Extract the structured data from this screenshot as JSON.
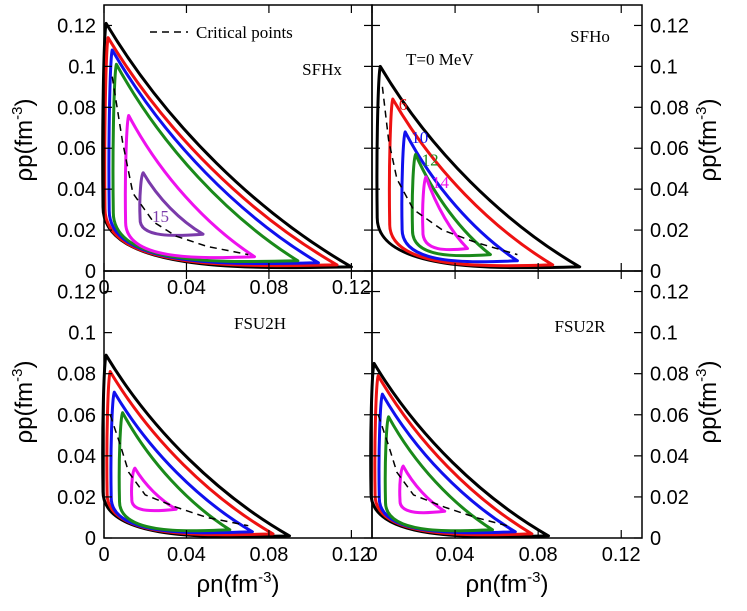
{
  "chart_data": {
    "type": "line",
    "xlabel": "ρn(fm-3)",
    "ylabel": "ρp(fm-3)",
    "xlim": [
      0,
      0.13
    ],
    "ylim": [
      0,
      0.13
    ],
    "xticks": [
      "0",
      "0.04",
      "0.08",
      "0.12"
    ],
    "yticks": [
      "0",
      "0.02",
      "0.04",
      "0.06",
      "0.08",
      "0.1",
      "0.12"
    ],
    "legend": {
      "label": "Critical points",
      "placement": "top"
    },
    "temperature_note": "T=0 MeV",
    "colors": {
      "T0": "#000000",
      "T6": "#ee1111",
      "T10": "#1010ee",
      "T12": "#1a8a1a",
      "T14": "#ee11ee",
      "T15": "#7a3aaa"
    },
    "panels": [
      {
        "name": "SFHx",
        "critical_points": [
          [
            0.004,
            0.095
          ],
          [
            0.009,
            0.063
          ],
          [
            0.014,
            0.038
          ],
          [
            0.024,
            0.024
          ],
          [
            0.035,
            0.017
          ],
          [
            0.05,
            0.012
          ],
          [
            0.07,
            0.008
          ]
        ],
        "curves": [
          {
            "temperature": "0",
            "label": "",
            "color_key": "T0",
            "outer": [
              [
                0.001,
                0.121
              ],
              [
                0.12,
                0.002
              ]
            ]
          },
          {
            "temperature": "6",
            "label": "",
            "color_key": "T6",
            "outer": [
              [
                0.002,
                0.114
              ],
              [
                0.113,
                0.003
              ]
            ]
          },
          {
            "temperature": "10",
            "label": "",
            "color_key": "T10",
            "outer": [
              [
                0.004,
                0.108
              ],
              [
                0.104,
                0.004
              ]
            ]
          },
          {
            "temperature": "12",
            "label": "",
            "color_key": "T12",
            "outer": [
              [
                0.006,
                0.101
              ],
              [
                0.094,
                0.005
              ]
            ]
          },
          {
            "temperature": "14",
            "label": "",
            "color_key": "T14",
            "outer": [
              [
                0.012,
                0.076
              ],
              [
                0.073,
                0.007
              ]
            ]
          },
          {
            "temperature": "15",
            "label": "15",
            "color_key": "T15",
            "outer": [
              [
                0.019,
                0.048
              ],
              [
                0.048,
                0.018
              ]
            ]
          }
        ]
      },
      {
        "name": "SFHo",
        "critical_points": [
          [
            0.005,
            0.09
          ],
          [
            0.008,
            0.064
          ],
          [
            0.012,
            0.045
          ],
          [
            0.02,
            0.03
          ],
          [
            0.034,
            0.02
          ],
          [
            0.05,
            0.014
          ],
          [
            0.07,
            0.008
          ]
        ],
        "curves": [
          {
            "temperature": "0",
            "label": "",
            "color_key": "T0",
            "outer": [
              [
                0.004,
                0.1
              ],
              [
                0.1,
                0.002
              ]
            ]
          },
          {
            "temperature": "6",
            "label": "6",
            "color_key": "T6",
            "outer": [
              [
                0.01,
                0.084
              ],
              [
                0.087,
                0.003
              ]
            ]
          },
          {
            "temperature": "10",
            "label": "10",
            "color_key": "T10",
            "outer": [
              [
                0.016,
                0.068
              ],
              [
                0.07,
                0.005
              ]
            ]
          },
          {
            "temperature": "12",
            "label": "12",
            "color_key": "T12",
            "outer": [
              [
                0.021,
                0.057
              ],
              [
                0.057,
                0.008
              ]
            ]
          },
          {
            "temperature": "14",
            "label": "14",
            "color_key": "T14",
            "outer": [
              [
                0.026,
                0.046
              ],
              [
                0.046,
                0.011
              ]
            ]
          }
        ]
      },
      {
        "name": "FSU2H",
        "critical_points": [
          [
            0.003,
            0.06
          ],
          [
            0.008,
            0.045
          ],
          [
            0.012,
            0.032
          ],
          [
            0.02,
            0.021
          ],
          [
            0.035,
            0.015
          ],
          [
            0.05,
            0.01
          ],
          [
            0.07,
            0.006
          ]
        ],
        "curves": [
          {
            "temperature": "0",
            "label": "",
            "color_key": "T0",
            "outer": [
              [
                0.001,
                0.089
              ],
              [
                0.09,
                0.001
              ]
            ]
          },
          {
            "temperature": "6",
            "label": "",
            "color_key": "T6",
            "outer": [
              [
                0.003,
                0.081
              ],
              [
                0.082,
                0.002
              ]
            ]
          },
          {
            "temperature": "10",
            "label": "",
            "color_key": "T10",
            "outer": [
              [
                0.005,
                0.071
              ],
              [
                0.072,
                0.003
              ]
            ]
          },
          {
            "temperature": "12",
            "label": "",
            "color_key": "T12",
            "outer": [
              [
                0.009,
                0.061
              ],
              [
                0.061,
                0.004
              ]
            ]
          },
          {
            "temperature": "14",
            "label": "",
            "color_key": "T14",
            "outer": [
              [
                0.015,
                0.034
              ],
              [
                0.035,
                0.014
              ]
            ]
          }
        ]
      },
      {
        "name": "FSU2R",
        "critical_points": [
          [
            0.003,
            0.06
          ],
          [
            0.008,
            0.045
          ],
          [
            0.012,
            0.032
          ],
          [
            0.02,
            0.021
          ],
          [
            0.035,
            0.015
          ],
          [
            0.05,
            0.01
          ],
          [
            0.065,
            0.006
          ]
        ],
        "curves": [
          {
            "temperature": "0",
            "label": "",
            "color_key": "T0",
            "outer": [
              [
                0.001,
                0.085
              ],
              [
                0.085,
                0.001
              ]
            ]
          },
          {
            "temperature": "6",
            "label": "",
            "color_key": "T6",
            "outer": [
              [
                0.003,
                0.079
              ],
              [
                0.077,
                0.002
              ]
            ]
          },
          {
            "temperature": "10",
            "label": "",
            "color_key": "T10",
            "outer": [
              [
                0.005,
                0.07
              ],
              [
                0.069,
                0.003
              ]
            ]
          },
          {
            "temperature": "12",
            "label": "",
            "color_key": "T12",
            "outer": [
              [
                0.008,
                0.059
              ],
              [
                0.058,
                0.004
              ]
            ]
          },
          {
            "temperature": "14",
            "label": "",
            "color_key": "T14",
            "outer": [
              [
                0.015,
                0.035
              ],
              [
                0.035,
                0.013
              ]
            ]
          }
        ]
      }
    ]
  }
}
